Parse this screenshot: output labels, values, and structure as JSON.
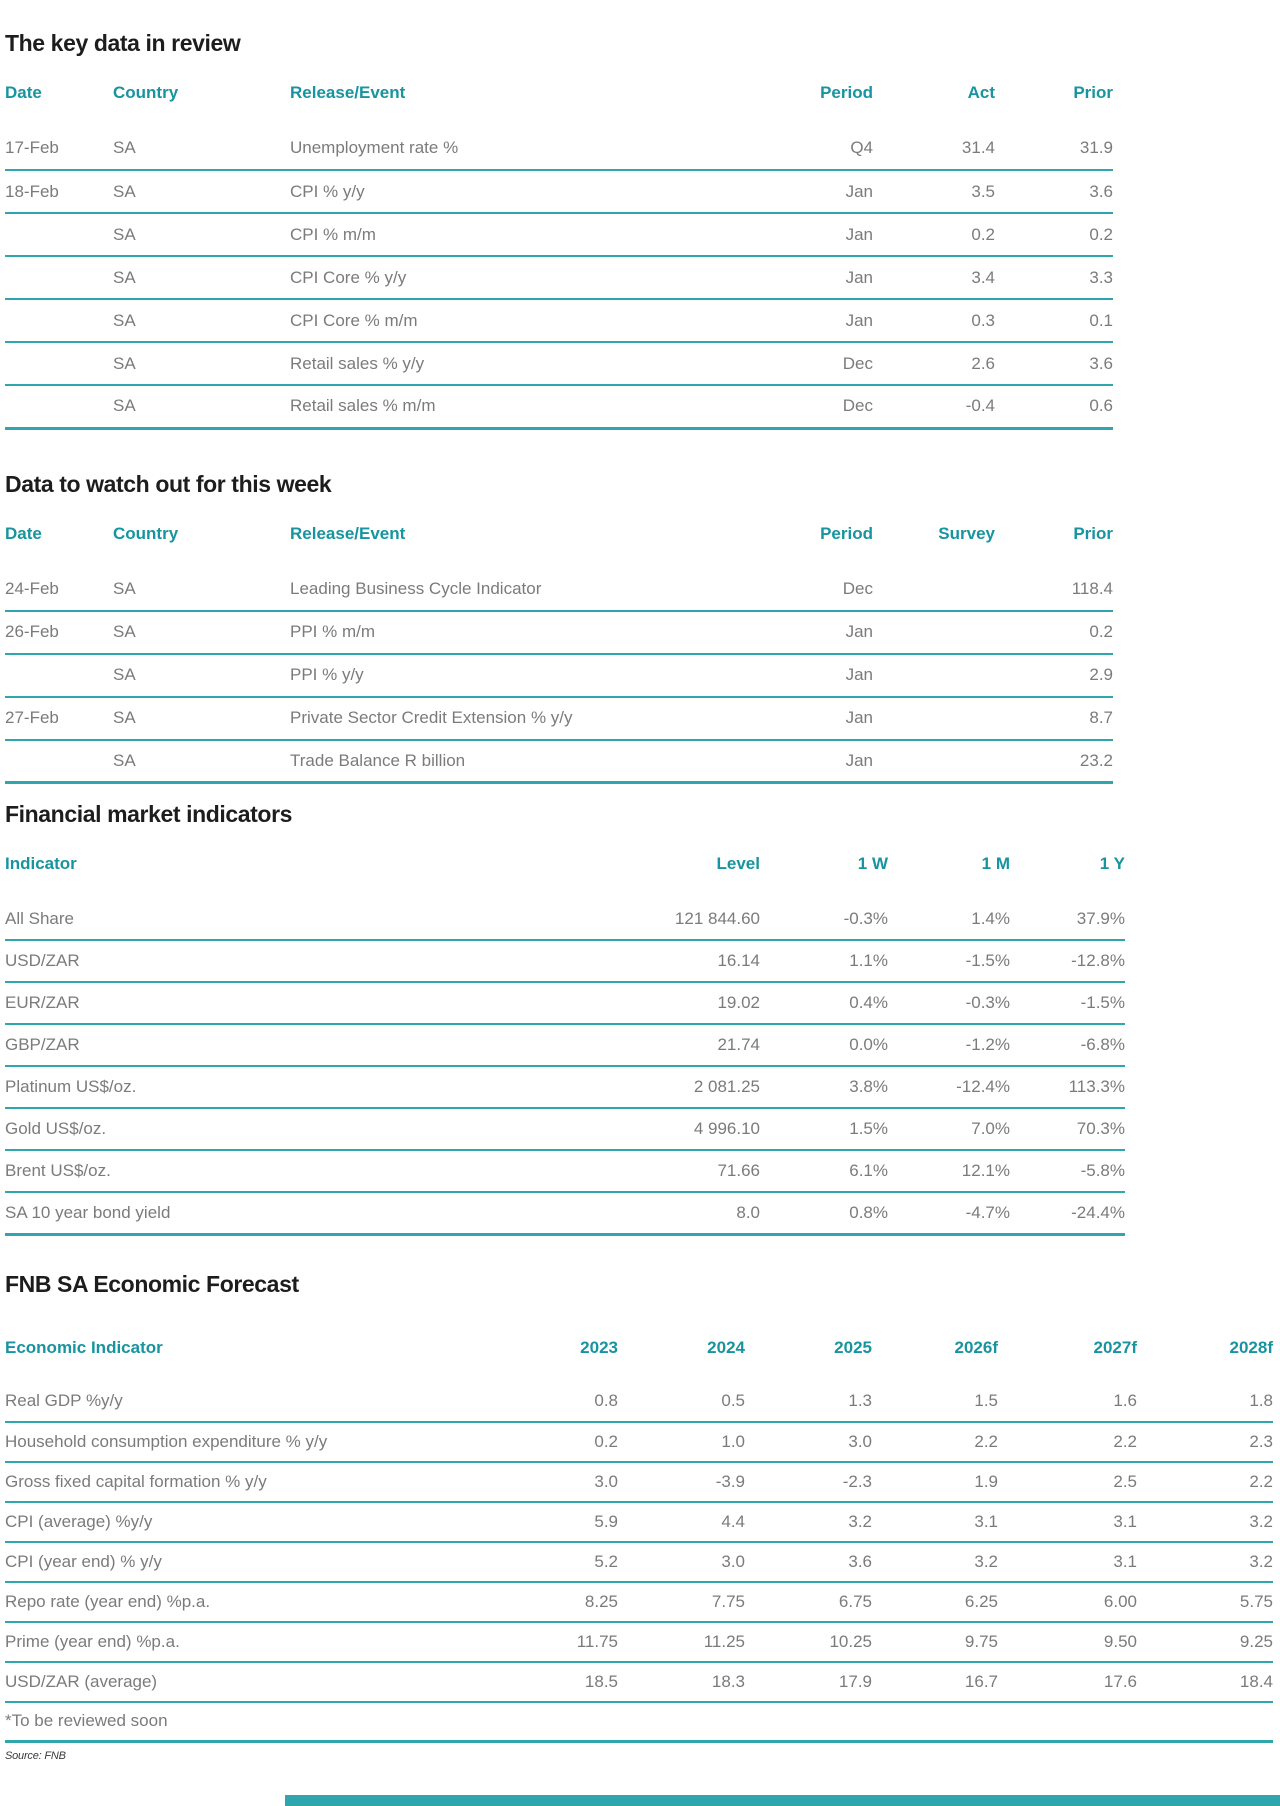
{
  "colors": {
    "heading_teal": "#17949f",
    "rule_teal": "#2fa6ad",
    "body_text_gray": "#7b7b7b",
    "title_black": "#1d1d1d",
    "footer_bar_teal": "#2fa6ad"
  },
  "sections": [
    {
      "title": "The key data in review",
      "table": {
        "headers": [
          "Date",
          "Country",
          "Release/Event",
          "Period",
          "Act",
          "Prior"
        ],
        "rows": [
          [
            "17-Feb",
            "SA",
            "Unemployment rate %",
            "Q4",
            "31.4",
            "31.9"
          ],
          [
            "18-Feb",
            "SA",
            "CPI % y/y",
            "Jan",
            "3.5",
            "3.6"
          ],
          [
            "",
            "SA",
            "CPI % m/m",
            "Jan",
            "0.2",
            "0.2"
          ],
          [
            "",
            "SA",
            "CPI Core % y/y",
            "Jan",
            "3.4",
            "3.3"
          ],
          [
            "",
            "SA",
            "CPI Core % m/m",
            "Jan",
            "0.3",
            "0.1"
          ],
          [
            "",
            "SA",
            "Retail sales % y/y",
            "Dec",
            "2.6",
            "3.6"
          ],
          [
            "",
            "SA",
            "Retail sales % m/m",
            "Dec",
            "-0.4",
            "0.6"
          ]
        ]
      }
    },
    {
      "title": "Data to watch out for this week",
      "table": {
        "headers": [
          "Date",
          "Country",
          "Release/Event",
          "Period",
          "Survey",
          "Prior"
        ],
        "rows": [
          [
            "24-Feb",
            "SA",
            "Leading Business Cycle Indicator",
            "Dec",
            "",
            "118.4"
          ],
          [
            "26-Feb",
            "SA",
            "PPI % m/m",
            "Jan",
            "",
            "0.2"
          ],
          [
            "",
            "SA",
            "PPI % y/y",
            "Jan",
            "",
            "2.9"
          ],
          [
            "27-Feb",
            "SA",
            "Private Sector Credit Extension % y/y",
            "Jan",
            "",
            "8.7"
          ],
          [
            "",
            "SA",
            "Trade Balance R billion",
            "Jan",
            "",
            "23.2"
          ]
        ]
      }
    },
    {
      "title": "Financial market indicators",
      "table": {
        "headers": [
          "Indicator",
          "Level",
          "1 W",
          "1 M",
          "1 Y"
        ],
        "rows": [
          [
            "All Share",
            "121 844.60",
            "-0.3%",
            "1.4%",
            "37.9%"
          ],
          [
            "USD/ZAR",
            "16.14",
            "1.1%",
            "-1.5%",
            "-12.8%"
          ],
          [
            "EUR/ZAR",
            "19.02",
            "0.4%",
            "-0.3%",
            "-1.5%"
          ],
          [
            "GBP/ZAR",
            "21.74",
            "0.0%",
            "-1.2%",
            "-6.8%"
          ],
          [
            "Platinum US$/oz.",
            "2 081.25",
            "3.8%",
            "-12.4%",
            "113.3%"
          ],
          [
            "Gold US$/oz.",
            "4 996.10",
            "1.5%",
            "7.0%",
            "70.3%"
          ],
          [
            "Brent US$/oz.",
            "71.66",
            "6.1%",
            "12.1%",
            "-5.8%"
          ],
          [
            "SA 10 year bond yield",
            "8.0",
            "0.8%",
            "-4.7%",
            "-24.4%"
          ]
        ]
      }
    },
    {
      "title": "FNB SA Economic Forecast",
      "table": {
        "headers": [
          "Economic Indicator",
          "2023",
          "2024",
          "2025",
          "2026f",
          "2027f",
          "2028f"
        ],
        "rows": [
          [
            "Real GDP %y/y",
            "0.8",
            "0.5",
            "1.3",
            "1.5",
            "1.6",
            "1.8"
          ],
          [
            "Household consumption expenditure % y/y",
            "0.2",
            "1.0",
            "3.0",
            "2.2",
            "2.2",
            "2.3"
          ],
          [
            "Gross fixed capital formation % y/y",
            "3.0",
            "-3.9",
            "-2.3",
            "1.9",
            "2.5",
            "2.2"
          ],
          [
            "CPI (average) %y/y",
            "5.9",
            "4.4",
            "3.2",
            "3.1",
            "3.1",
            "3.2"
          ],
          [
            "CPI (year end) % y/y",
            "5.2",
            "3.0",
            "3.6",
            "3.2",
            "3.1",
            "3.2"
          ],
          [
            "Repo rate (year end) %p.a.",
            "8.25",
            "7.75",
            "6.75",
            "6.25",
            "6.00",
            "5.75"
          ],
          [
            "Prime (year end) %p.a.",
            "11.75",
            "11.25",
            "10.25",
            "9.75",
            "9.50",
            "9.25"
          ],
          [
            "USD/ZAR (average)",
            "18.5",
            "18.3",
            "17.9",
            "16.7",
            "17.6",
            "18.4"
          ],
          [
            "*To be reviewed soon"
          ]
        ]
      }
    }
  ],
  "footer": {
    "source": "Source: FNB"
  }
}
